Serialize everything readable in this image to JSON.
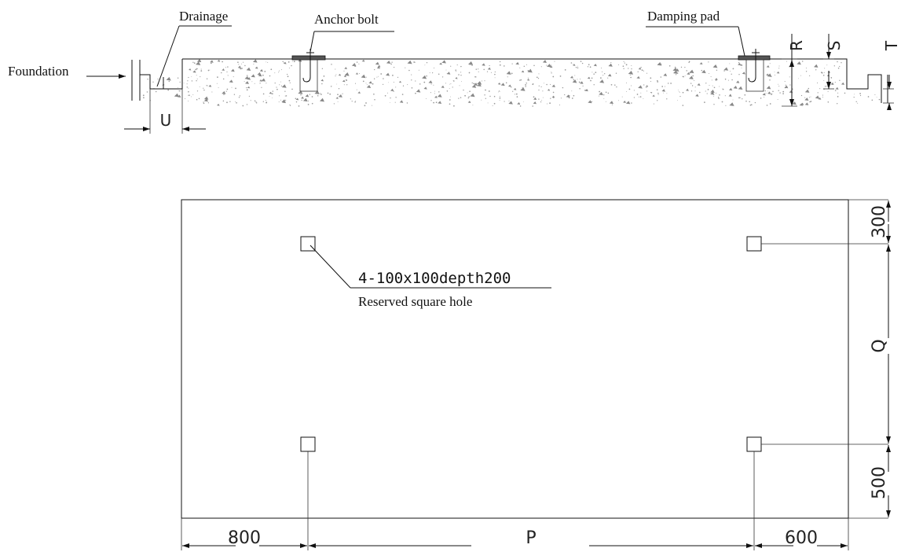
{
  "section": {
    "foundation_label": "Foundation",
    "drainage_label": "Drainage",
    "anchor_bolt_label": "Anchor bolt",
    "damping_pad_label": "Damping pad",
    "dim_r": "R",
    "dim_s": "S",
    "dim_t": "T",
    "dim_u": "U"
  },
  "plan": {
    "hole_spec": "4-100x100depth200",
    "hole_desc": "Reserved square hole",
    "dim_left": "800",
    "dim_p": "P",
    "dim_right": "600",
    "dim_top": "300",
    "dim_q": "Q",
    "dim_bottom": "500"
  }
}
